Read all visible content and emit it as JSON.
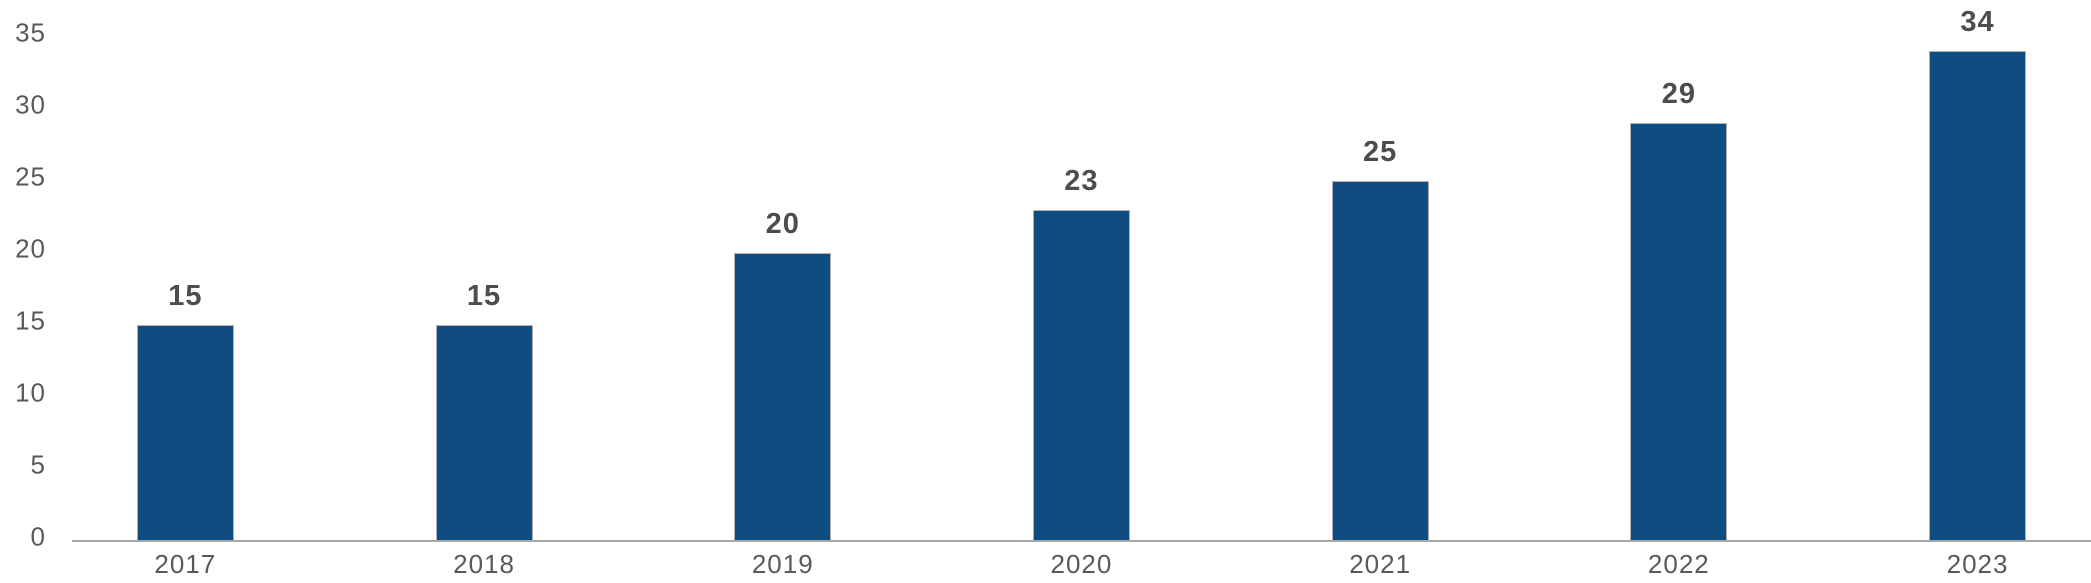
{
  "chart_data": {
    "type": "bar",
    "title": "",
    "xlabel": "",
    "ylabel": "",
    "categories": [
      "2017",
      "2018",
      "2019",
      "2020",
      "2021",
      "2022",
      "2023"
    ],
    "values": [
      15,
      15,
      20,
      23,
      25,
      29,
      34
    ],
    "data_labels": [
      "15",
      "15",
      "20",
      "23",
      "25",
      "29",
      "34"
    ],
    "ylim": [
      0,
      35
    ],
    "yticks": [
      0,
      5,
      10,
      15,
      20,
      25,
      30,
      35
    ],
    "grid": false,
    "legend": "none",
    "colors": {
      "bar_fill": "#0f4c81",
      "bar_border": "#b3b3b3",
      "data_label_text": "#4d4d4d",
      "axis_tick_text": "#595959",
      "axis_line": "#a6a6a6",
      "background": "#ffffff"
    }
  }
}
